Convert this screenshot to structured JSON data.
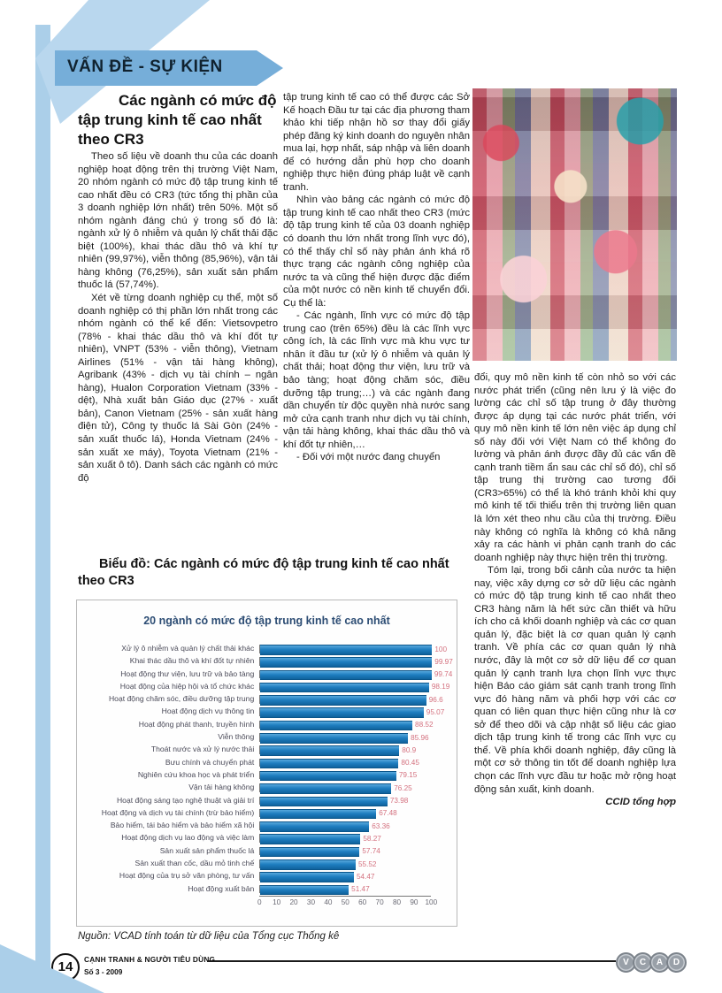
{
  "banner": {
    "label": "VẤN ĐỀ - SỰ KIỆN"
  },
  "article": {
    "title": "Các ngành có mức độ tập trung kinh tế cao nhất theo CR3",
    "col1_p1": "Theo số liệu về doanh thu của các doanh nghiệp hoạt động trên thị trường Việt Nam, 20 nhóm ngành có mức độ tập trung kinh tế cao nhất đều có CR3 (tức tổng thị phần của 3 doanh nghiệp lớn nhất) trên 50%. Một số nhóm ngành đáng chú ý trong số đó là: ngành xử lý ô nhiễm và quản lý chất thải đặc biệt (100%), khai thác dầu thô và khí tự nhiên (99,97%), viễn thông (85,96%), vận tải hàng không (76,25%), sản xuất sản phẩm thuốc lá (57,74%).",
    "col1_p2": "Xét về từng doanh nghiệp cụ thể, một số doanh nghiệp có thị phần lớn nhất trong các nhóm ngành có thể kể đến: Vietsovpetro (78% - khai thác dầu thô và khí đốt tự nhiên), VNPT (53% - viễn thông), Vietnam Airlines (51% - vận tải hàng không), Agribank (43% - dịch vụ tài chính – ngân hàng), Hualon Corporation Vietnam (33% - dệt), Nhà xuất bản Giáo dục (27% - xuất bản), Canon Vietnam (25% - sản xuất hàng điện tử), Công ty thuốc lá Sài Gòn (24% - sản xuất thuốc lá), Honda Vietnam (24% - sản xuất xe máy), Toyota Vietnam (21% - sản xuất ô tô). Danh sách các ngành có mức độ",
    "col2_p1": "tập trung kinh tế cao có thể được các Sở Kế hoạch Đầu tư tại các địa phương tham khảo khi tiếp nhận hồ sơ thay đổi giấy phép đăng ký kinh doanh do nguyên nhân mua lại, hợp nhất, sáp nhập và liên doanh để có hướng dẫn phù hợp cho doanh nghiệp thực hiện đúng pháp luật về cạnh tranh.",
    "col2_p2": "Nhìn vào bảng các ngành có mức độ tập trung kinh tế cao nhất theo CR3 (mức độ tập trung kinh tế của 03 doanh nghiệp có doanh thu lớn nhất trong lĩnh vực đó), có thể thấy chỉ số này phản ánh khá rõ thực trạng các ngành công nghiệp của nước ta và cũng thể hiện được đặc điểm của một nước có nền kinh tế chuyển đổi. Cụ thể là:",
    "col2_p3": "- Các ngành, lĩnh vực có mức độ tập trung cao (trên 65%) đều là các lĩnh vực công ích, là các lĩnh vực mà khu vực tư nhân ít đầu tư (xử lý ô nhiễm và quản lý chất thải; hoạt động thư viện, lưu trữ và bảo tàng; hoạt động chăm sóc, điều dưỡng tập trung;…) và các ngành đang dần chuyển từ độc quyền nhà nước sang mở cửa cạnh tranh như dịch vụ tài chính, vận tải hàng không, khai thác dầu thô và khí đốt tự nhiên,…",
    "col2_p4": "- Đối với một nước đang chuyển",
    "col3_p1": "đổi, quy mô nền kinh tế còn nhỏ so với các nước phát triển (cũng nên lưu ý là việc đo lường các chỉ số tập trung ở đây thường được áp dụng tại các nước phát triển, với quy mô nền kinh tế lớn nên việc áp dụng chỉ số này đối với Việt Nam có thể không đo lường và phản ánh được đầy đủ các vấn đề cạnh tranh tiềm ẩn sau các chỉ số đó), chỉ số tập trung thị trường cao tương đối (CR3>65%) có thể là khó tránh khỏi khi quy mô kinh tế tối thiểu trên thị trường liên quan là lớn xét theo nhu cầu của thị trường. Điều này không có nghĩa là không có khả năng xảy ra các hành vi phản cạnh tranh do các doanh nghiệp này thực hiện trên thị trường.",
    "col3_p2": "Tóm lại, trong bối cảnh của nước ta hiện nay, việc xây dựng cơ sở dữ liệu các ngành có mức độ tập trung kinh tế cao nhất theo CR3 hàng năm là hết sức cần thiết và hữu ích cho cả khối doanh nghiệp và các cơ quan quản lý, đặc biệt là cơ quan quản lý cạnh tranh. Về phía các cơ quan quản lý nhà nước, đây là một cơ sở dữ liệu để cơ quan quản lý cạnh tranh lựa chọn lĩnh vực thực hiện Báo cáo giám sát cạnh tranh trong lĩnh vực đó hàng năm và phối hợp với các cơ quan có liên quan thực hiện cũng như là cơ sở để theo dõi và cập nhật số liệu các giao dịch tập trung kinh tế trong các lĩnh vực cụ thể. Về phía khối doanh nghiệp, đây cũng là một cơ sở thông tin tốt để doanh nghiệp lựa chọn các lĩnh vực đầu tư hoặc mở rộng hoạt động sản xuất, kinh doanh.",
    "byline": "CCID tổng hợp"
  },
  "chart_section": {
    "heading": "Biểu đồ: Các ngành có mức độ tập trung kinh tế cao nhất theo CR3",
    "source": "Nguồn: VCAD tính toán từ dữ liệu của Tổng cục Thống kê"
  },
  "chart_data": {
    "type": "bar",
    "orientation": "horizontal",
    "title": "20 ngành có mức độ tập trung kinh tế cao nhất",
    "categories": [
      "Xử lý ô nhiễm và quản lý chất thải khác",
      "Khai thác dầu thô và khí đốt tự nhiên",
      "Hoạt động thư viện, lưu trữ và bảo tàng",
      "Hoạt động của hiệp hội và tổ chức khác",
      "Hoạt động chăm sóc, điều dưỡng tập trung",
      "Hoạt động dịch vụ thông tin",
      "Hoạt động phát thanh, truyền hình",
      "Viễn thông",
      "Thoát nước và xử lý nước thải",
      "Bưu chính và chuyển phát",
      "Nghiên cứu khoa học và phát triển",
      "Vận tải hàng không",
      "Hoạt động sáng tạo nghệ thuật và giải trí",
      "Hoạt động và dịch vụ tài chính (trừ bảo hiểm)",
      "Bảo hiểm, tái bảo hiểm và bảo hiểm xã hội",
      "Hoạt động dịch vụ lao động và việc làm",
      "Sản xuất sản phẩm thuốc lá",
      "Sản xuất than cốc, dầu mỏ tinh chế",
      "Hoạt động của trụ sở văn phòng, tư vấn",
      "Hoạt động xuất bản"
    ],
    "values": [
      100,
      99.97,
      99.74,
      98.19,
      96.6,
      95.07,
      88.52,
      85.96,
      80.9,
      80.45,
      79.15,
      76.25,
      73.98,
      67.48,
      63.36,
      58.27,
      57.74,
      55.52,
      54.47,
      51.47
    ],
    "xlabel": "",
    "ylabel": "",
    "xlim": [
      0,
      100
    ],
    "xticks": [
      0,
      10,
      20,
      30,
      40,
      50,
      60,
      70,
      80,
      90,
      100
    ],
    "grid": false,
    "legend": "none",
    "bar_color": "#1f7ec0",
    "value_label_color": "#d4717f"
  },
  "footer": {
    "page_number": "14",
    "magazine": "CẠNH TRANH & NGƯỜI TIÊU DÙNG",
    "issue": "Số 3 - 2009",
    "logo_letters": [
      "V",
      "C",
      "A",
      "D"
    ]
  }
}
